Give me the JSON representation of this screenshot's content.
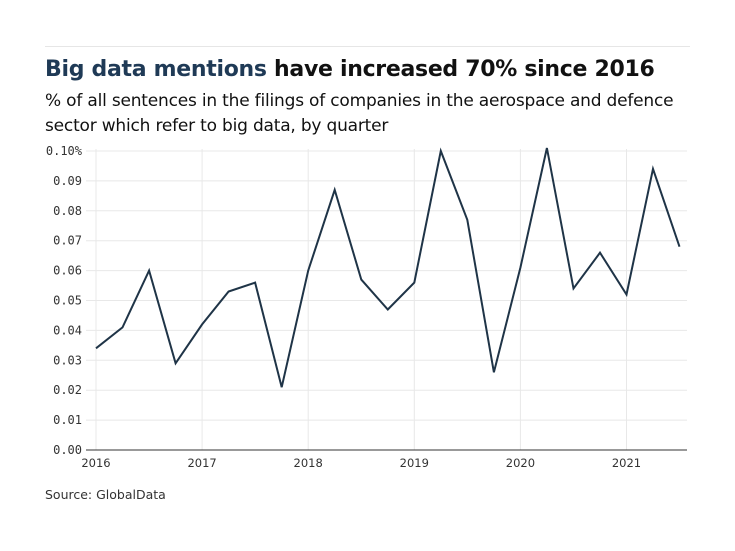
{
  "header": {
    "title_highlight": "Big data mentions",
    "title_rest": " have increased 70% since 2016",
    "subtitle": "% of all sentences in the filings of companies in the aerospace and defence sector which refer to big data, by quarter"
  },
  "footer": {
    "source": "Source: GlobalData"
  },
  "colors": {
    "line": "#1f3447",
    "highlight": "#1f3a56",
    "grid": "#e8e8e8"
  },
  "chart_data": {
    "type": "line",
    "title": "Big data mentions have increased 70% since 2016",
    "subtitle": "% of all sentences in the filings of companies in the aerospace and defence sector which refer to big data, by quarter",
    "xlabel": "",
    "ylabel": "",
    "x": [
      "2016 Q1",
      "2016 Q2",
      "2016 Q3",
      "2016 Q4",
      "2017 Q1",
      "2017 Q2",
      "2017 Q3",
      "2017 Q4",
      "2018 Q1",
      "2018 Q2",
      "2018 Q3",
      "2018 Q4",
      "2019 Q1",
      "2019 Q2",
      "2019 Q3",
      "2019 Q4",
      "2020 Q1",
      "2020 Q2",
      "2020 Q3",
      "2020 Q4",
      "2021 Q1",
      "2021 Q2",
      "2021 Q3"
    ],
    "values": [
      0.034,
      0.041,
      0.06,
      0.029,
      0.042,
      0.053,
      0.056,
      0.021,
      0.06,
      0.087,
      0.057,
      0.047,
      0.056,
      0.1,
      0.077,
      0.026,
      0.061,
      0.101,
      0.054,
      0.066,
      0.052,
      0.094,
      0.068
    ],
    "ylim": [
      0,
      0.1
    ],
    "y_ticks": [
      "0.00",
      "0.01",
      "0.02",
      "0.03",
      "0.04",
      "0.05",
      "0.06",
      "0.07",
      "0.08",
      "0.09",
      "0.10%"
    ],
    "x_ticks": [
      "2016",
      "2017",
      "2018",
      "2019",
      "2020",
      "2021"
    ],
    "grid": true
  }
}
